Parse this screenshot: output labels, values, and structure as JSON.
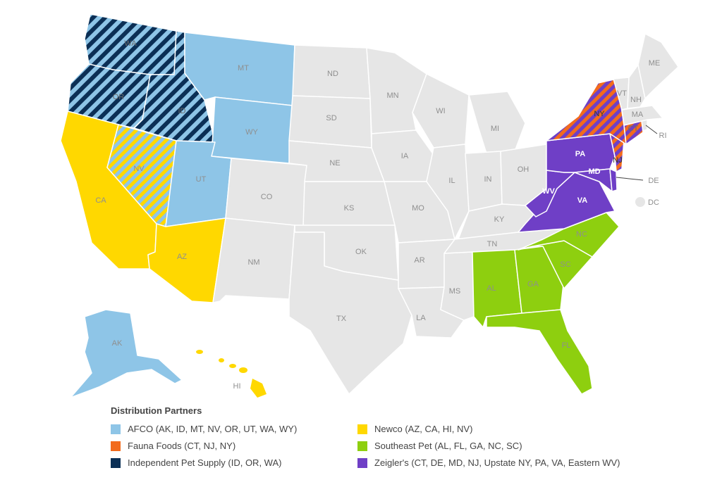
{
  "colors": {
    "afco": "#8ec5e7",
    "fauna": "#f26b1d",
    "independent": "#0b2f55",
    "newco": "#ffd800",
    "southeast": "#8ecf0f",
    "zeiglers": "#6f3fc6",
    "none": "#e6e6e6",
    "outline": "#ffffff"
  },
  "states": {
    "WA": "WA",
    "OR": "OR",
    "ID": "ID",
    "MT": "MT",
    "WY": "WY",
    "CA": "CA",
    "NV": "NV",
    "UT": "UT",
    "AZ": "AZ",
    "CO": "CO",
    "NM": "NM",
    "ND": "ND",
    "SD": "SD",
    "NE": "NE",
    "KS": "KS",
    "OK": "OK",
    "TX": "TX",
    "MN": "MN",
    "IA": "IA",
    "MO": "MO",
    "AR": "AR",
    "LA": "LA",
    "WI": "WI",
    "IL": "IL",
    "MS": "MS",
    "MI": "MI",
    "IN": "IN",
    "KY": "KY",
    "TN": "TN",
    "AL": "AL",
    "OH": "OH",
    "GA": "GA",
    "FL": "FL",
    "SC": "SC",
    "NC": "NC",
    "VA": "VA",
    "WV": "WV",
    "PA": "PA",
    "MD": "MD",
    "DE": "DE",
    "DC": "DC",
    "NJ": "NJ",
    "NY": "NY",
    "CT": "CT",
    "RI": "RI",
    "MA": "MA",
    "VT": "VT",
    "NH": "NH",
    "ME": "ME",
    "AK": "AK",
    "HI": "HI"
  },
  "legend": {
    "title": "Distribution Partners",
    "items": [
      {
        "label": "AFCO (AK, ID, MT, NV, OR, UT, WA, WY)",
        "color_key": "afco"
      },
      {
        "label": "Newco (AZ, CA, HI, NV)",
        "color_key": "newco"
      },
      {
        "label": "Fauna Foods (CT, NJ, NY)",
        "color_key": "fauna"
      },
      {
        "label": "Southeast Pet (AL, FL, GA, NC, SC)",
        "color_key": "southeast"
      },
      {
        "label": "Independent Pet Supply (ID, OR, WA)",
        "color_key": "independent"
      },
      {
        "label": "Zeigler's (CT, DE, MD, NJ, Upstate NY, PA, VA, Eastern WV)",
        "color_key": "zeiglers"
      }
    ]
  }
}
